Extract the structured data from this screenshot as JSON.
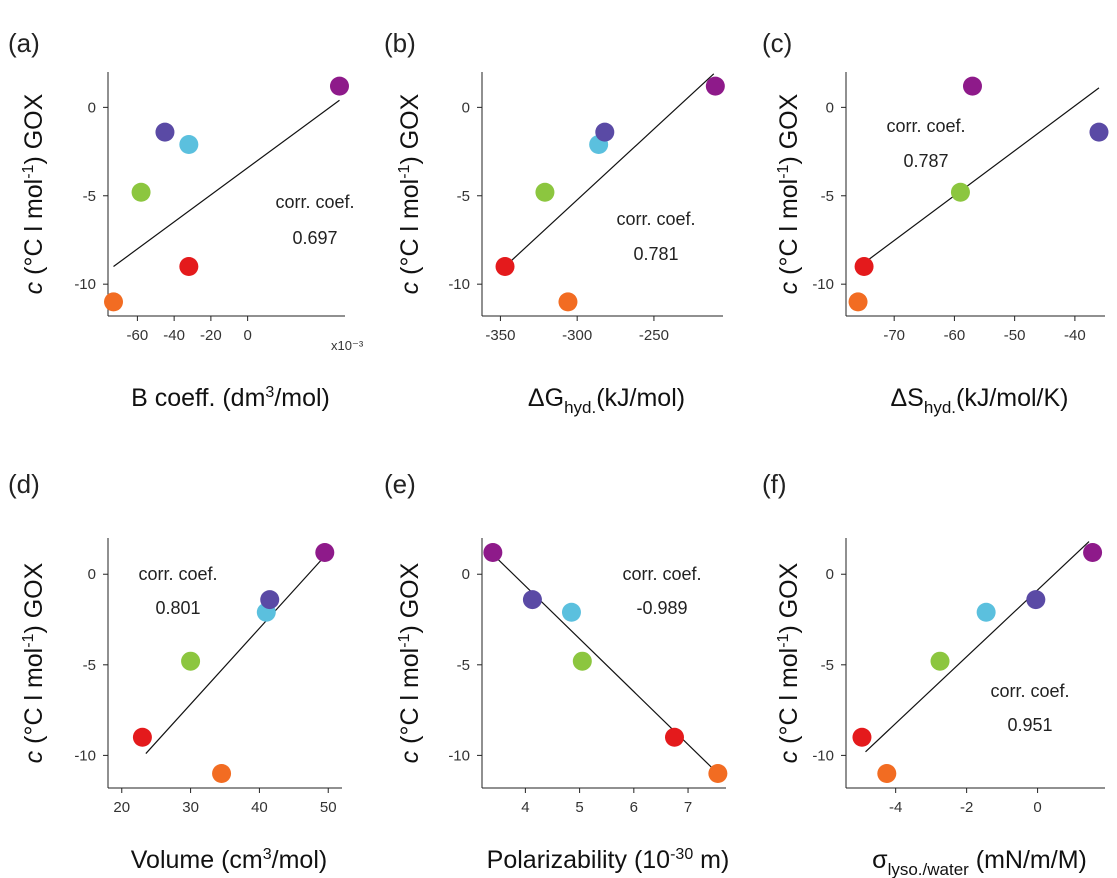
{
  "colors": {
    "red": "#e41a1c",
    "orange": "#f26c22",
    "green": "#8cc63f",
    "cyan": "#5bc0de",
    "indigo": "#5a4aa5",
    "purple": "#8e1a8a"
  },
  "chart_data": [
    {
      "type": "scatter",
      "panel_label": "(a)",
      "ylabel": {
        "c": "c",
        "main": " (°C l mol",
        "sup": "-1",
        "end": ") GOX"
      },
      "xlabel": {
        "pre": "B coeff. (dm",
        "sup": "3",
        "post": "/mol)"
      },
      "x_multiplier_label": "x10⁻³",
      "xlim": [
        -76,
        53
      ],
      "ylim": [
        -11.8,
        2.0
      ],
      "xticks": [
        -60,
        -40,
        -20,
        0
      ],
      "yticks": [
        -10,
        -5,
        0
      ],
      "annotation": [
        "corr. coef.",
        "0.697"
      ],
      "points": [
        {
          "x": -73,
          "y": -11.0,
          "color": "orange"
        },
        {
          "x": -58,
          "y": -4.8,
          "color": "green"
        },
        {
          "x": -45,
          "y": -1.4,
          "color": "indigo"
        },
        {
          "x": -32,
          "y": -2.1,
          "color": "cyan"
        },
        {
          "x": -32,
          "y": -9.0,
          "color": "red"
        },
        {
          "x": 50,
          "y": 1.2,
          "color": "purple"
        }
      ],
      "fit_line": [
        [
          -73,
          -9.0
        ],
        [
          50,
          0.4
        ]
      ]
    },
    {
      "type": "scatter",
      "panel_label": "(b)",
      "ylabel": {
        "c": "c",
        "main": " (°C l mol",
        "sup": "-1",
        "end": ") GOX"
      },
      "xlabel": {
        "pre": "ΔG",
        "sub": "hyd.",
        "post": "(kJ/mol)"
      },
      "xlim": [
        -362,
        -205
      ],
      "ylim": [
        -11.8,
        2.0
      ],
      "xticks": [
        -350,
        -300,
        -250
      ],
      "yticks": [
        -10,
        -5,
        0
      ],
      "annotation": [
        "corr. coef.",
        "0.781"
      ],
      "points": [
        {
          "x": -347,
          "y": -9.0,
          "color": "red"
        },
        {
          "x": -321,
          "y": -4.8,
          "color": "green"
        },
        {
          "x": -306,
          "y": -11.0,
          "color": "orange"
        },
        {
          "x": -286,
          "y": -2.1,
          "color": "cyan"
        },
        {
          "x": -282,
          "y": -1.4,
          "color": "indigo"
        },
        {
          "x": -210,
          "y": 1.2,
          "color": "purple"
        }
      ],
      "fit_line": [
        [
          -347,
          -9.0
        ],
        [
          -211,
          1.9
        ]
      ]
    },
    {
      "type": "scatter",
      "panel_label": "(c)",
      "ylabel": {
        "c": "c",
        "main": " (°C l mol",
        "sup": "-1",
        "end": ") GOX"
      },
      "xlabel": {
        "pre": "ΔS",
        "sub": "hyd.",
        "post": "(kJ/mol/K)"
      },
      "xlim": [
        -78,
        -35
      ],
      "ylim": [
        -11.8,
        2.0
      ],
      "xticks": [
        -70,
        -60,
        -50,
        -40
      ],
      "yticks": [
        -10,
        -5,
        0
      ],
      "annotation": [
        "corr. coef.",
        "0.787"
      ],
      "points": [
        {
          "x": -76,
          "y": -11.0,
          "color": "orange"
        },
        {
          "x": -75,
          "y": -9.0,
          "color": "red"
        },
        {
          "x": -59,
          "y": -4.8,
          "color": "green"
        },
        {
          "x": -57,
          "y": 1.2,
          "color": "purple"
        },
        {
          "x": -36,
          "y": -1.4,
          "color": "indigo"
        }
      ],
      "fit_line": [
        [
          -75,
          -8.8
        ],
        [
          -36,
          1.1
        ]
      ]
    },
    {
      "type": "scatter",
      "panel_label": "(d)",
      "ylabel": {
        "c": "c",
        "main": " (°C l mol",
        "sup": "-1",
        "end": ") GOX"
      },
      "xlabel": {
        "pre": "Volume (cm",
        "sup": "3",
        "post": "/mol)"
      },
      "xlim": [
        18,
        52
      ],
      "ylim": [
        -11.8,
        2.0
      ],
      "xticks": [
        20,
        30,
        40,
        50
      ],
      "yticks": [
        -10,
        -5,
        0
      ],
      "annotation": [
        "corr. coef.",
        "0.801"
      ],
      "points": [
        {
          "x": 23,
          "y": -9.0,
          "color": "red"
        },
        {
          "x": 30,
          "y": -4.8,
          "color": "green"
        },
        {
          "x": 34.5,
          "y": -11.0,
          "color": "orange"
        },
        {
          "x": 41,
          "y": -2.1,
          "color": "cyan"
        },
        {
          "x": 41.5,
          "y": -1.4,
          "color": "indigo"
        },
        {
          "x": 49.5,
          "y": 1.2,
          "color": "purple"
        }
      ],
      "fit_line": [
        [
          23.5,
          -9.9
        ],
        [
          49.5,
          1.0
        ]
      ]
    },
    {
      "type": "scatter",
      "panel_label": "(e)",
      "ylabel": {
        "c": "c",
        "main": " (°C l mol",
        "sup": "-1",
        "end": ") GOX"
      },
      "xlabel": {
        "pre": "Polarizability (10",
        "sup": "-30",
        "post": " m)"
      },
      "xlim": [
        3.2,
        7.7
      ],
      "ylim": [
        -11.8,
        2.0
      ],
      "xticks": [
        4,
        5,
        6,
        7
      ],
      "yticks": [
        -10,
        -5,
        0
      ],
      "annotation": [
        "corr. coef.",
        "-0.989"
      ],
      "points": [
        {
          "x": 3.4,
          "y": 1.2,
          "color": "purple"
        },
        {
          "x": 4.13,
          "y": -1.4,
          "color": "indigo"
        },
        {
          "x": 4.85,
          "y": -2.1,
          "color": "cyan"
        },
        {
          "x": 5.05,
          "y": -4.8,
          "color": "green"
        },
        {
          "x": 6.75,
          "y": -9.0,
          "color": "red"
        },
        {
          "x": 7.55,
          "y": -11.0,
          "color": "orange"
        }
      ],
      "fit_line": [
        [
          3.4,
          1.1
        ],
        [
          7.55,
          -11.0
        ]
      ]
    },
    {
      "type": "scatter",
      "panel_label": "(f)",
      "ylabel": {
        "c": "c",
        "main": " (°C l mol",
        "sup": "-1",
        "end": ") GOX"
      },
      "xlabel": {
        "pre": "σ",
        "sub": "lyso./water",
        "post": " (mN/m/M)"
      },
      "xlim": [
        -5.4,
        1.9
      ],
      "ylim": [
        -11.8,
        2.0
      ],
      "xticks": [
        -4,
        -2,
        0
      ],
      "yticks": [
        -10,
        -5,
        0
      ],
      "annotation": [
        "corr. coef.",
        "0.951"
      ],
      "points": [
        {
          "x": -4.95,
          "y": -9.0,
          "color": "red"
        },
        {
          "x": -4.25,
          "y": -11.0,
          "color": "orange"
        },
        {
          "x": -2.75,
          "y": -4.8,
          "color": "green"
        },
        {
          "x": -1.45,
          "y": -2.1,
          "color": "cyan"
        },
        {
          "x": -0.05,
          "y": -1.4,
          "color": "indigo"
        },
        {
          "x": 1.55,
          "y": 1.2,
          "color": "purple"
        }
      ],
      "fit_line": [
        [
          -4.85,
          -9.8
        ],
        [
          1.45,
          1.8
        ]
      ]
    }
  ]
}
